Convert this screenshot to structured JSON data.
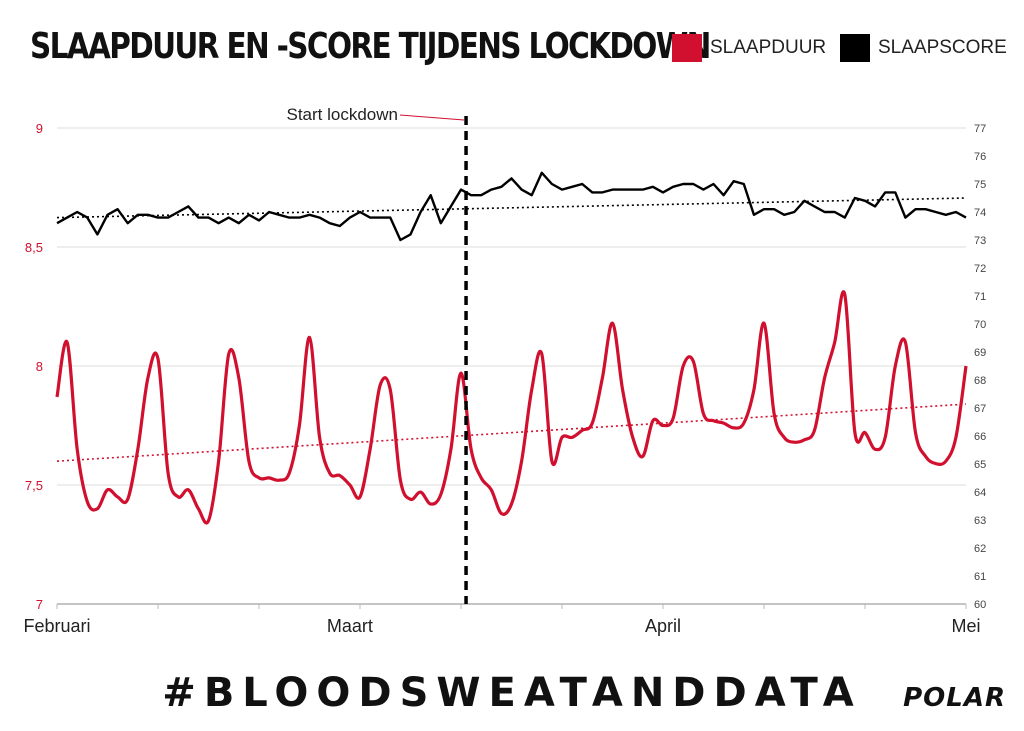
{
  "title": "SLAAPDUUR EN -SCORE TIJDENS LOCKDOWN",
  "legend": [
    {
      "label": "SLAAPDUUR",
      "color": "#d0102e"
    },
    {
      "label": "SLAAPSCORE",
      "color": "#000000"
    }
  ],
  "hashtag": "#BLOODSWEATANDDATA",
  "logo": "POLAR",
  "chart_data": {
    "type": "line",
    "title": "SLAAPDUUR EN -SCORE TIJDENS LOCKDOWN",
    "x_range": [
      0,
      90
    ],
    "x_labels": [
      {
        "label": "Februari",
        "x": 0
      },
      {
        "label": "Maart",
        "x": 29
      },
      {
        "label": "April",
        "x": 60
      },
      {
        "label": "Mei",
        "x": 90
      }
    ],
    "y_left": {
      "ticks": [
        7,
        7.5,
        8,
        8.5,
        9
      ],
      "tick_labels": [
        "7",
        "7,5",
        "8",
        "8,5",
        "9"
      ],
      "ylim": [
        7,
        9
      ]
    },
    "y_right": {
      "ticks": [
        60,
        61,
        62,
        63,
        64,
        65,
        66,
        67,
        68,
        69,
        70,
        71,
        72,
        73,
        74,
        75,
        76,
        77
      ],
      "ylim": [
        60,
        77
      ]
    },
    "grid": true,
    "annotation": {
      "text": "Start lockdown",
      "x": 40.5
    },
    "series": [
      {
        "name": "SLAAPDUUR",
        "axis": "left",
        "color": "#d0102e",
        "values": [
          7.87,
          8.1,
          7.65,
          7.43,
          7.4,
          7.48,
          7.45,
          7.44,
          7.65,
          7.95,
          8.03,
          7.55,
          7.45,
          7.48,
          7.4,
          7.35,
          7.6,
          8.05,
          7.95,
          7.6,
          7.53,
          7.53,
          7.52,
          7.55,
          7.75,
          8.12,
          7.7,
          7.55,
          7.54,
          7.5,
          7.45,
          7.65,
          7.92,
          7.9,
          7.52,
          7.44,
          7.47,
          7.42,
          7.46,
          7.65,
          7.97,
          7.65,
          7.53,
          7.48,
          7.38,
          7.42,
          7.6,
          7.9,
          8.05,
          7.6,
          7.7,
          7.7,
          7.73,
          7.76,
          7.95,
          8.18,
          7.9,
          7.7,
          7.62,
          7.77,
          7.75,
          7.78,
          8.0,
          8.02,
          7.8,
          7.77,
          7.76,
          7.74,
          7.76,
          7.9,
          8.18,
          7.8,
          7.7,
          7.68,
          7.69,
          7.73,
          7.95,
          8.1,
          8.3,
          7.72,
          7.72,
          7.65,
          7.7,
          8.0,
          8.1,
          7.72,
          7.62,
          7.59,
          7.6,
          7.7,
          8.0
        ]
      },
      {
        "name": "SLAAPSCORE",
        "axis": "right",
        "color": "#000000",
        "values": [
          73.6,
          73.8,
          74.0,
          73.8,
          73.2,
          73.9,
          74.1,
          73.6,
          73.9,
          73.9,
          73.8,
          73.8,
          74.0,
          74.2,
          73.8,
          73.8,
          73.6,
          73.8,
          73.6,
          73.9,
          73.7,
          74.0,
          73.9,
          73.8,
          73.8,
          73.9,
          73.8,
          73.6,
          73.5,
          73.8,
          74.0,
          73.8,
          73.8,
          73.8,
          73.0,
          73.2,
          74.0,
          74.6,
          73.6,
          74.2,
          74.8,
          74.6,
          74.6,
          74.8,
          74.9,
          75.2,
          74.8,
          74.6,
          75.4,
          75.0,
          74.8,
          74.9,
          75.0,
          74.7,
          74.7,
          74.8,
          74.8,
          74.8,
          74.8,
          74.9,
          74.7,
          74.9,
          75.0,
          75.0,
          74.8,
          75.0,
          74.6,
          75.1,
          75.0,
          73.9,
          74.1,
          74.1,
          73.9,
          74.0,
          74.4,
          74.2,
          74.0,
          74.0,
          73.8,
          74.5,
          74.4,
          74.2,
          74.7,
          74.7,
          73.8,
          74.1,
          74.1,
          74.0,
          73.9,
          74.0,
          73.8
        ]
      },
      {
        "name": "trend SLAAPDUUR",
        "axis": "left",
        "style": "dotted",
        "color": "#d0102e",
        "x": [
          0,
          90
        ],
        "values": [
          7.6,
          7.84
        ]
      },
      {
        "name": "trend SLAAPSCORE",
        "axis": "right",
        "style": "dotted",
        "color": "#000000",
        "x": [
          0,
          90
        ],
        "values": [
          73.8,
          74.5
        ]
      }
    ]
  }
}
